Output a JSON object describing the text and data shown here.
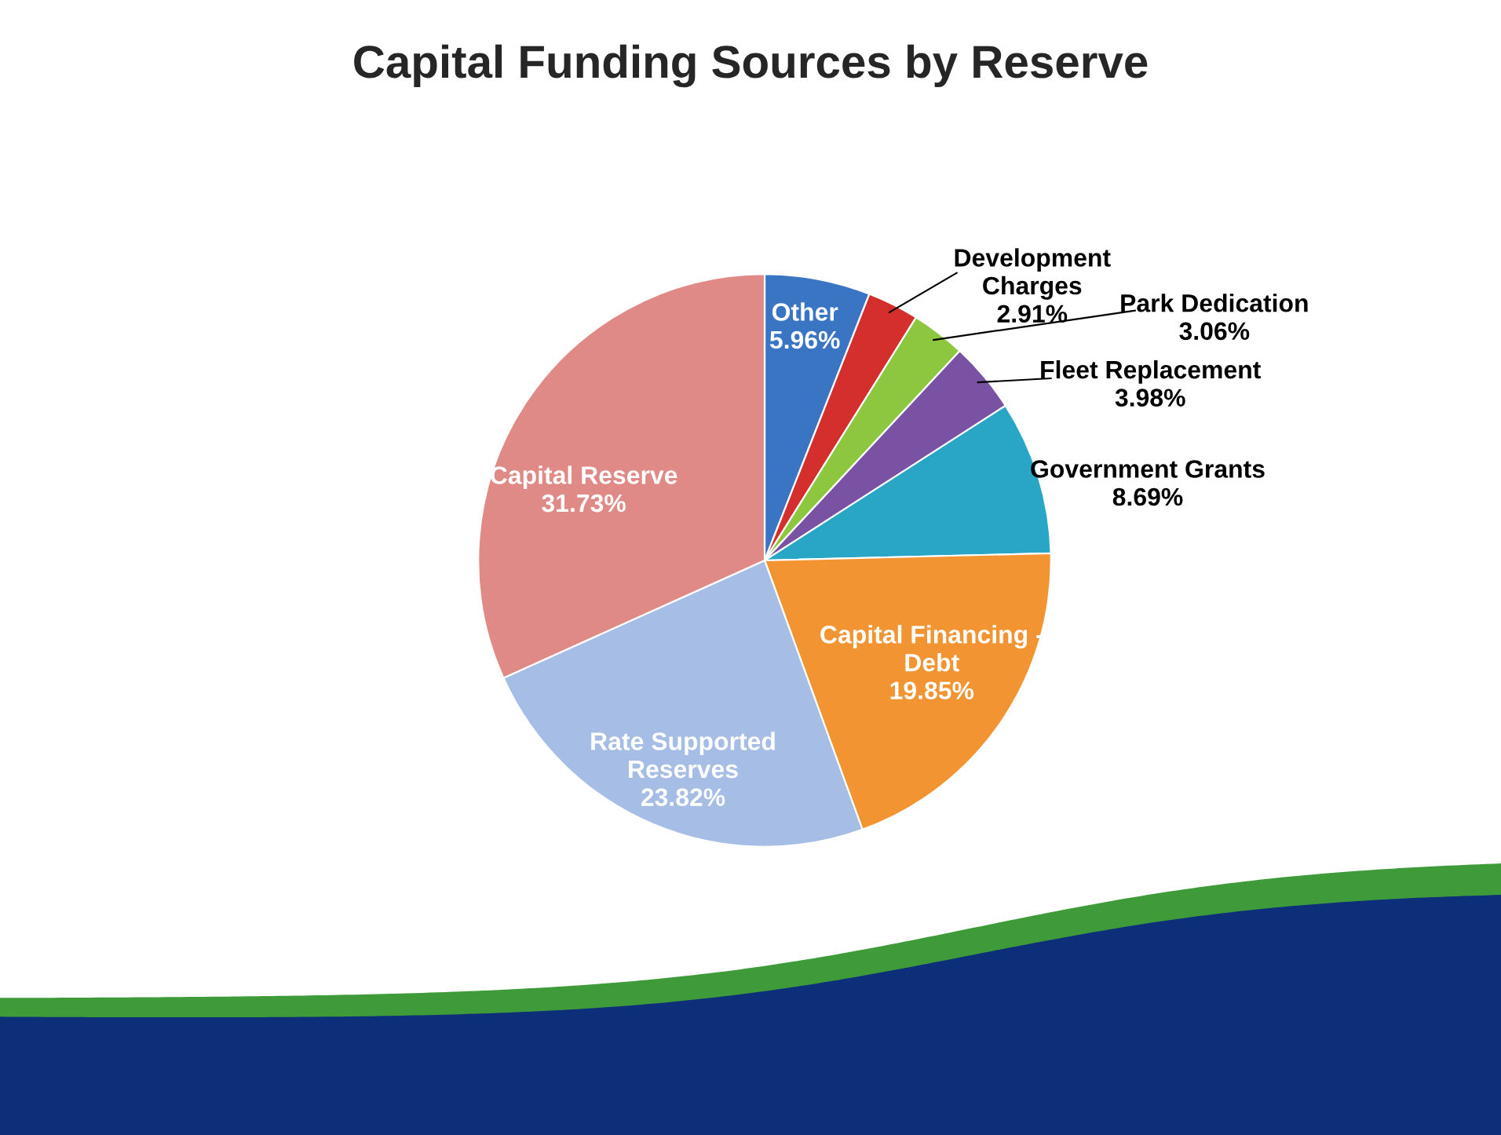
{
  "chart_data": {
    "type": "pie",
    "title": "Capital Funding Sources by Reserve",
    "categories": [
      "Other",
      "Development\nCharges",
      "Park Dedication",
      "Fleet Replacement",
      "Government Grants",
      "Capital Financing -\nDebt",
      "Rate Supported\nReserves",
      "Capital Reserve"
    ],
    "values": [
      5.96,
      2.91,
      3.06,
      3.98,
      8.69,
      19.85,
      23.82,
      31.73
    ],
    "value_labels": [
      "5.96%",
      "2.91%",
      "3.06%",
      "3.98%",
      "8.69%",
      "19.85%",
      "23.82%",
      "31.73%"
    ],
    "colors": [
      "#3a75c4",
      "#d42f2c",
      "#8dc63f",
      "#7a52a3",
      "#29a6c6",
      "#f39432",
      "#a6bde6",
      "#e08a87"
    ]
  }
}
